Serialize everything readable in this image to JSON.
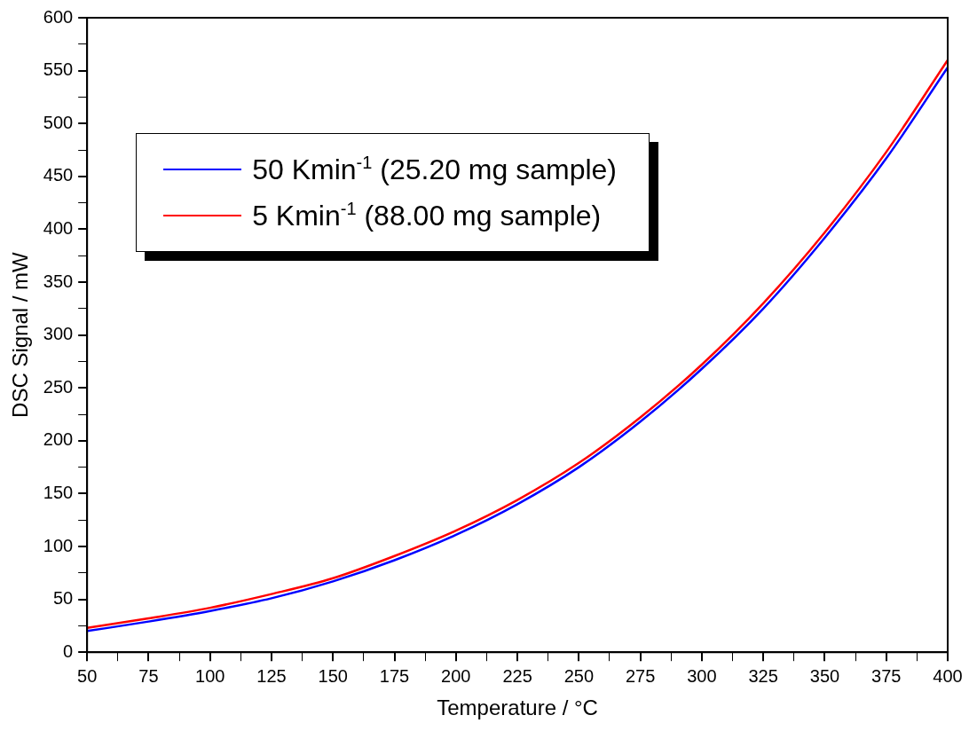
{
  "chart_data": {
    "type": "line",
    "xlabel": "Temperature / °C",
    "ylabel": "DSC Signal / mW",
    "x": [
      50,
      75,
      100,
      125,
      150,
      175,
      200,
      225,
      250,
      275,
      300,
      325,
      350,
      375,
      400
    ],
    "series": [
      {
        "name": "50 Kmin$^{-1}$ (25.20 mg sample)",
        "color": "#0000ff",
        "values": [
          20,
          29,
          39,
          51,
          67,
          87,
          111,
          140,
          175,
          218,
          268,
          325,
          392,
          467,
          553
        ]
      },
      {
        "name": "5 Kmin$^{-1}$ (88.00 mg sample)",
        "color": "#ff0000",
        "values": [
          23,
          32,
          42,
          55,
          70,
          91,
          115,
          144,
          179,
          222,
          272,
          330,
          397,
          473,
          560
        ]
      }
    ],
    "xlim": [
      50,
      400
    ],
    "xticks": [
      50,
      {
        "value": 62.5,
        "label": null
      },
      75,
      {
        "value": 87.5,
        "label": null
      },
      100,
      {
        "value": 112.5,
        "label": null
      },
      125,
      {
        "value": 137.5,
        "label": null
      },
      150,
      {
        "value": 162.5,
        "label": null
      },
      175,
      {
        "value": 187.5,
        "label": null
      },
      200,
      {
        "value": 212.5,
        "label": null
      },
      225,
      {
        "value": 237.5,
        "label": null
      },
      250,
      {
        "value": 262.5,
        "label": null
      },
      275,
      {
        "value": 287.5,
        "label": null
      },
      300,
      {
        "value": 312.5,
        "label": null
      },
      325,
      {
        "value": 337.5,
        "label": null
      },
      350,
      {
        "value": 362.5,
        "label": null
      },
      375,
      {
        "value": 387.5,
        "label": null
      },
      400
    ],
    "ylim": [
      0,
      600
    ],
    "yticks": [
      0,
      {
        "value": 25,
        "label": null
      },
      50,
      {
        "value": 75,
        "label": null
      },
      100,
      {
        "value": 125,
        "label": null
      },
      150,
      {
        "value": 175,
        "label": null
      },
      200,
      {
        "value": 225,
        "label": null
      },
      250,
      {
        "value": 275,
        "label": null
      },
      300,
      {
        "value": 325,
        "label": null
      },
      350,
      {
        "value": 375,
        "label": null
      },
      400,
      {
        "value": 425,
        "label": null
      },
      450,
      {
        "value": 475,
        "label": null
      },
      500,
      {
        "value": 525,
        "label": null
      },
      550,
      {
        "value": 575,
        "label": null
      },
      600
    ],
    "grid": false,
    "legend": "top left",
    "marker": "none",
    "line_style": "solid"
  }
}
